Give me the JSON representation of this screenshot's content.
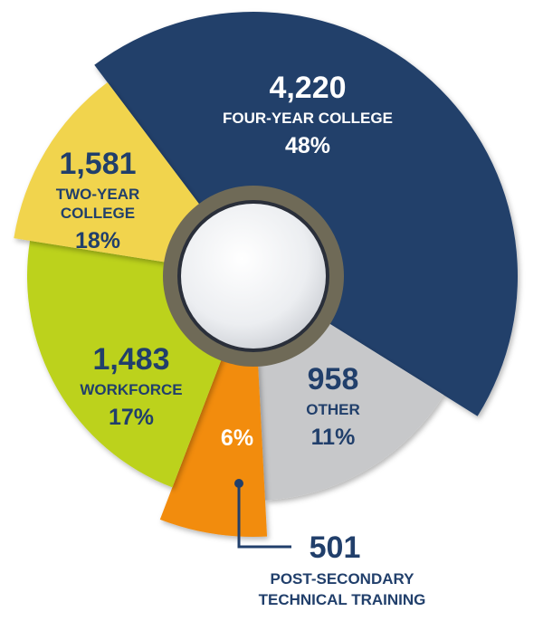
{
  "chart_data": {
    "type": "pie",
    "style": "exploded-donut",
    "title": "",
    "slices": [
      {
        "value": 4220,
        "value_label": "4,220",
        "category": [
          "FOUR-YEAR COLLEGE"
        ],
        "percent": "48%",
        "color": "#213f6b"
      },
      {
        "value": 958,
        "value_label": "958",
        "category": [
          "OTHER"
        ],
        "percent": "11%",
        "color": "#c7c8ca"
      },
      {
        "value": 501,
        "value_label": "501",
        "category": [
          "POST-SECONDARY",
          "TECHNICAL TRAINING"
        ],
        "percent": "6%",
        "color": "#f28c0f"
      },
      {
        "value": 1483,
        "value_label": "1,483",
        "category": [
          "WORKFORCE"
        ],
        "percent": "17%",
        "color": "#bcd21c"
      },
      {
        "value": 1581,
        "value_label": "1,581",
        "category": [
          "TWO-YEAR",
          "COLLEGE"
        ],
        "percent": "18%",
        "color": "#f1d44d"
      }
    ],
    "text_colors": {
      "on_dark": "#ffffff",
      "on_light": "#213f6b"
    },
    "legend": "none",
    "grid": false
  }
}
